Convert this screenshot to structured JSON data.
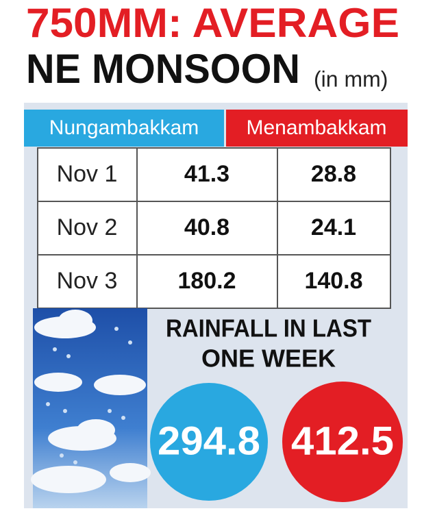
{
  "header": {
    "title": "750MM: AVERAGE",
    "subtitle": "NE MONSOON",
    "unit": "(in mm)"
  },
  "table": {
    "columns": [
      "Nungambakkam",
      "Menambakkam"
    ],
    "rows": [
      [
        "Nov 1",
        41.3,
        28.8
      ],
      [
        "Nov 2",
        40.8,
        24.1
      ],
      [
        "Nov 3",
        180.2,
        140.8
      ]
    ]
  },
  "weekly": {
    "title": [
      "RAINFALL IN LAST",
      "ONE WEEK"
    ],
    "values": [
      294.8,
      412.5
    ]
  }
}
